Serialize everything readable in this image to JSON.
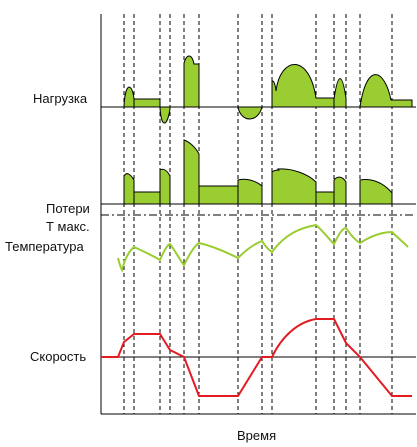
{
  "labels": {
    "load": "Нагрузка",
    "losses": "Потери",
    "tmax": "Т макс.",
    "temperature": "Температура",
    "speed": "Скорость",
    "time": "Время"
  },
  "colors": {
    "fill_green": "#9ACD32",
    "temperature_line": "#9ACD32",
    "speed_line": "#E31C24",
    "axis": "#000000",
    "dashed": "#000000"
  }
}
